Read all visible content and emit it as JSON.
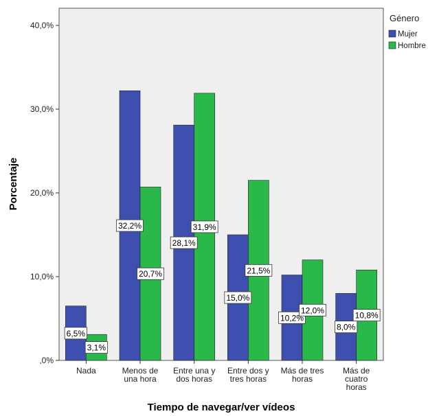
{
  "chart_data": {
    "type": "bar",
    "xlabel": "Tiempo de navegar/ver vídeos",
    "ylabel": "Porcentaje",
    "ylim": [
      0,
      40
    ],
    "yticks": [
      0,
      10,
      20,
      30,
      40
    ],
    "ytick_labels": [
      ",0%",
      "10,0%",
      "20,0%",
      "30,0%",
      "40,0%"
    ],
    "categories": [
      [
        "Nada"
      ],
      [
        "Menos de",
        "una hora"
      ],
      [
        "Entre una y",
        "dos horas"
      ],
      [
        "Entre dos y",
        "tres horas"
      ],
      [
        "Más de tres",
        "horas"
      ],
      [
        "Más de",
        "cuatro",
        "horas"
      ]
    ],
    "series": [
      {
        "name": "Mujer",
        "color": "#3f4fb0",
        "values": [
          6.5,
          32.2,
          28.1,
          15.0,
          10.2,
          8.0
        ],
        "labels": [
          "6,5%",
          "32,2%",
          "28,1%",
          "15,0%",
          "10,2%",
          "8,0%"
        ]
      },
      {
        "name": "Hombre",
        "color": "#2ab84a",
        "values": [
          3.1,
          20.7,
          31.9,
          21.5,
          12.0,
          10.8
        ],
        "labels": [
          "3,1%",
          "20,7%",
          "31,9%",
          "21,5%",
          "12,0%",
          "10,8%"
        ]
      }
    ],
    "legend": {
      "title": "Género",
      "position": "top-right"
    },
    "grid": false,
    "plot_background": "#efefef"
  }
}
